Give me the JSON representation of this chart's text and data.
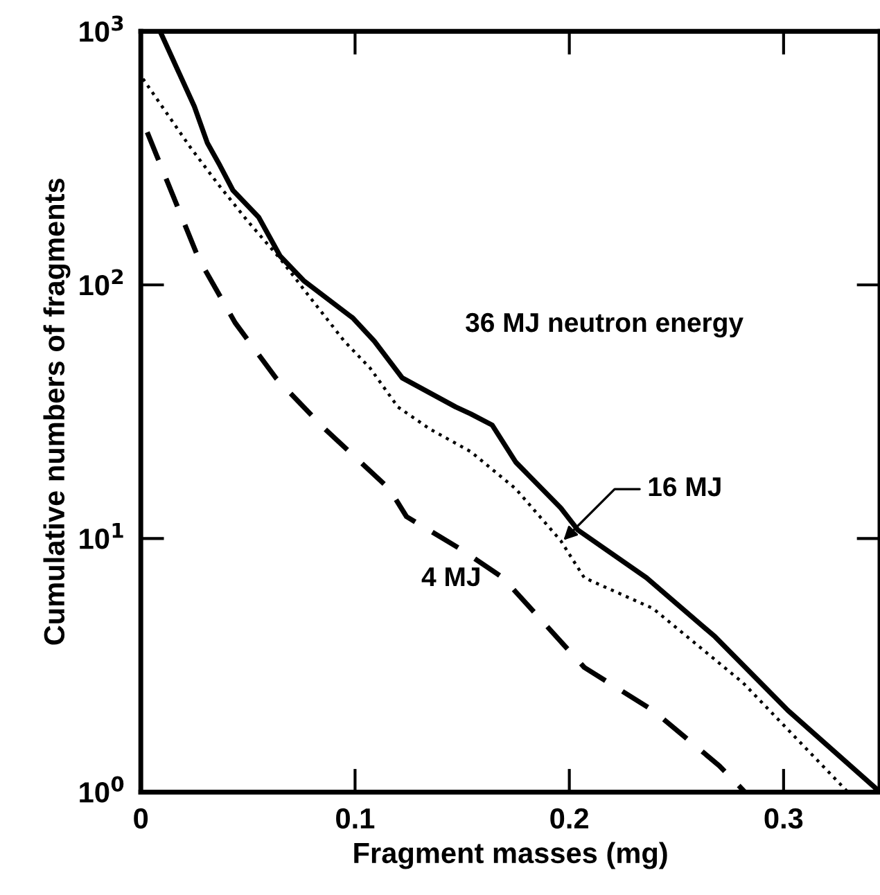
{
  "chart_data": {
    "type": "line",
    "xlabel": "Fragment masses (mg)",
    "ylabel": "Cumulative numbers of fragments",
    "log": "y",
    "xlim": [
      0,
      0.345
    ],
    "ylim": [
      1,
      1000
    ],
    "xticks": [
      0,
      0.1,
      0.2,
      0.3
    ],
    "yticks": [
      {
        "value": 1,
        "label": "10$^{0}$"
      },
      {
        "value": 10,
        "label": "10$^{1}$"
      },
      {
        "value": 100,
        "label": "10$^{2}$"
      },
      {
        "value": 1000,
        "label": "10$^{3}$"
      }
    ],
    "grid": false,
    "series": [
      {
        "color": "#000000",
        "line_style": "solid",
        "x": [
          0.009,
          0.025,
          0.031,
          0.037,
          0.043,
          0.055,
          0.065,
          0.076,
          0.099,
          0.109,
          0.122,
          0.147,
          0.154,
          0.164,
          0.175,
          0.196,
          0.204,
          0.236,
          0.268,
          0.302,
          0.345
        ],
        "values": [
          1000,
          505,
          364,
          295,
          236,
          185,
          130,
          104,
          74,
          60,
          43,
          33,
          31,
          28,
          20,
          13.2,
          10.8,
          7.0,
          4.1,
          2.1,
          1.0
        ]
      },
      {
        "color": "#000000",
        "line_style": "dotted",
        "x": [
          0.001,
          0.023,
          0.036,
          0.05,
          0.065,
          0.08,
          0.095,
          0.107,
          0.12,
          0.135,
          0.154,
          0.175,
          0.196,
          0.207,
          0.239,
          0.281,
          0.33
        ],
        "values": [
          650,
          350,
          250,
          178,
          127,
          87,
          60,
          47,
          33,
          27,
          22,
          15.7,
          9.8,
          7.0,
          5.3,
          2.7,
          1.0
        ]
      },
      {
        "color": "#000000",
        "line_style": "dashed",
        "x": [
          0.003,
          0.012,
          0.027,
          0.044,
          0.063,
          0.076,
          0.086,
          0.116,
          0.124,
          0.15,
          0.169,
          0.207,
          0.239,
          0.27,
          0.282
        ],
        "values": [
          400,
          260,
          127,
          71,
          43,
          33,
          27,
          15.7,
          12.2,
          9.0,
          7.0,
          3.1,
          2.1,
          1.27,
          1.0
        ]
      }
    ],
    "annotations": [
      "36 MJ neutron energy",
      {
        "text": "16 MJ",
        "x": 0.196,
        "y": 9.6
      },
      "4 MJ"
    ]
  }
}
